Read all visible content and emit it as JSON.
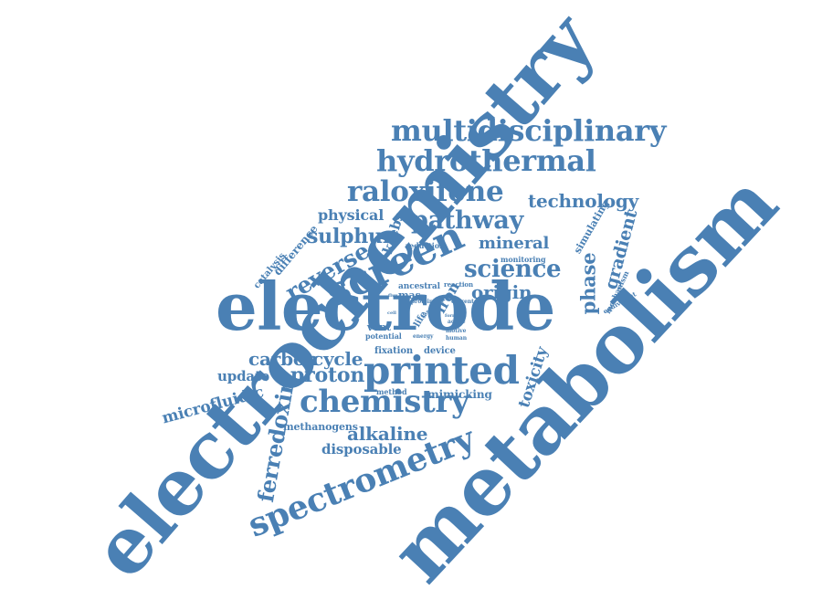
{
  "colors": {
    "word": "#4a80b4",
    "background": "#ffffff"
  },
  "words": [
    {
      "text": "electrochemistry"
    },
    {
      "text": "metabolism"
    },
    {
      "text": "electrode"
    },
    {
      "text": "multidisciplinary"
    },
    {
      "text": "hydrothermal"
    },
    {
      "text": "raloxifene"
    },
    {
      "text": "technology"
    },
    {
      "text": "pathway"
    },
    {
      "text": "physical"
    },
    {
      "text": "krebs"
    },
    {
      "text": "sulphur"
    },
    {
      "text": "screen"
    },
    {
      "text": "reverse"
    },
    {
      "text": "mineral"
    },
    {
      "text": "science"
    },
    {
      "text": "origin"
    },
    {
      "text": "phase"
    },
    {
      "text": "gradient"
    },
    {
      "text": "simulating"
    },
    {
      "text": "printed"
    },
    {
      "text": "chemistry"
    },
    {
      "text": "carbon"
    },
    {
      "text": "cycle"
    },
    {
      "text": "proton"
    },
    {
      "text": "update"
    },
    {
      "text": "microfluidic"
    },
    {
      "text": "ferredoxin"
    },
    {
      "text": "spectrometry"
    },
    {
      "text": "alkaline"
    },
    {
      "text": "disposable"
    },
    {
      "text": "methanogens"
    },
    {
      "text": "mimicking"
    },
    {
      "text": "toxicity"
    },
    {
      "text": "iron"
    },
    {
      "text": "difference"
    },
    {
      "text": "catalysis"
    },
    {
      "text": "reduction"
    },
    {
      "text": "monitoring"
    },
    {
      "text": "mechanism"
    },
    {
      "text": "equivalent"
    },
    {
      "text": "ancestral"
    },
    {
      "text": "mas"
    },
    {
      "text": "reaction"
    },
    {
      "text": "protein"
    },
    {
      "text": "current"
    },
    {
      "text": "life"
    },
    {
      "text": "vent"
    },
    {
      "text": "potential"
    },
    {
      "text": "energy"
    },
    {
      "text": "fixation"
    },
    {
      "text": "device"
    },
    {
      "text": "method"
    },
    {
      "text": "active"
    },
    {
      "text": "motive"
    },
    {
      "text": "human"
    },
    {
      "text": "flux"
    },
    {
      "text": "cell"
    },
    {
      "text": "site"
    },
    {
      "text": "form"
    }
  ]
}
